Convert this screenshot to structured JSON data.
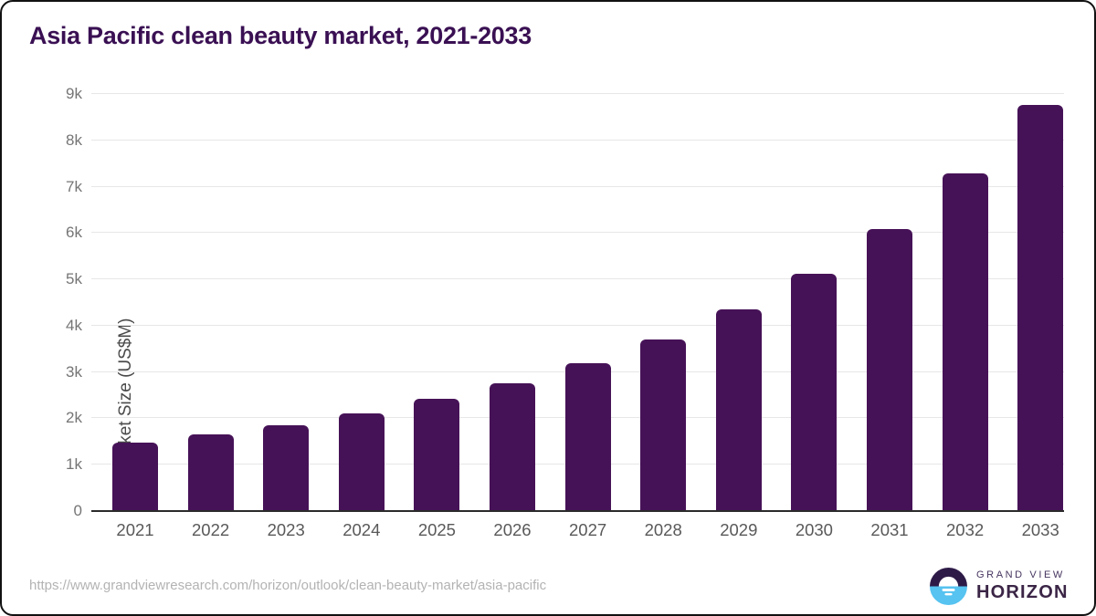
{
  "title": "Asia Pacific clean beauty market, 2021-2033",
  "chart_data": {
    "type": "bar",
    "categories": [
      "2021",
      "2022",
      "2023",
      "2024",
      "2025",
      "2026",
      "2027",
      "2028",
      "2029",
      "2030",
      "2031",
      "2032",
      "2033"
    ],
    "values": [
      1470,
      1655,
      1855,
      2100,
      2420,
      2755,
      3195,
      3705,
      4350,
      5120,
      6090,
      7285,
      8760
    ],
    "title": "Asia Pacific clean beauty market, 2021-2033",
    "xlabel": "",
    "ylabel": "Market Size (US$M)",
    "ylim": [
      0,
      9000
    ],
    "ytick_step": 1000,
    "ytick_labels": [
      "0",
      "1k",
      "2k",
      "3k",
      "4k",
      "5k",
      "6k",
      "7k",
      "8k",
      "9k"
    ],
    "grid": true,
    "legend": false,
    "bar_color": "#461257"
  },
  "footer": {
    "source_url": "https://www.grandviewresearch.com/horizon/outlook/clean-beauty-market/asia-pacific",
    "logo": {
      "line1": "GRAND VIEW",
      "line2": "HORIZON"
    }
  },
  "colors": {
    "title_text": "#3a1053",
    "bar": "#461257",
    "axis_line": "#2b2b2b",
    "gridline": "#e7e7e7",
    "ytick_text": "#757575",
    "xtick_text": "#595959",
    "url_text": "#b3b3b3",
    "logo_purple": "#2e1a47",
    "logo_blue": "#56c3f0"
  }
}
